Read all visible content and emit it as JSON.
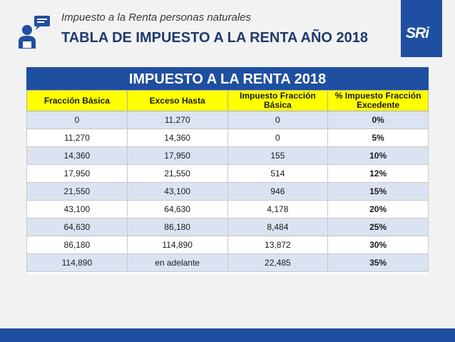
{
  "header": {
    "subtitle": "Impuesto a la Renta personas naturales",
    "title": "TABLA DE IMPUESTO A LA RENTA AÑO 2018",
    "logo_text": "SRi",
    "icon": "person-speech-icon"
  },
  "table": {
    "title": "IMPUESTO A LA RENTA 2018",
    "headers": [
      "Fracción Básica",
      "Exceso Hasta",
      "Impuesto Fracción Básica",
      "% Impuesto Fracción Excedente"
    ],
    "rows": [
      [
        "0",
        "11,270",
        "0",
        "0%"
      ],
      [
        "11,270",
        "14,360",
        "0",
        "5%"
      ],
      [
        "14,360",
        "17,950",
        "155",
        "10%"
      ],
      [
        "17,950",
        "21,550",
        "514",
        "12%"
      ],
      [
        "21,550",
        "43,100",
        "946",
        "15%"
      ],
      [
        "43,100",
        "64,630",
        "4,178",
        "20%"
      ],
      [
        "64,630",
        "86,180",
        "8,484",
        "25%"
      ],
      [
        "86,180",
        "114,890",
        "13,872",
        "30%"
      ],
      [
        "114,890",
        "en adelante",
        "22,485",
        "35%"
      ]
    ]
  },
  "colors": {
    "brand_blue": "#1f4fa0",
    "header_yellow": "#ffff00",
    "row_stripe": "#dbe3f2"
  }
}
